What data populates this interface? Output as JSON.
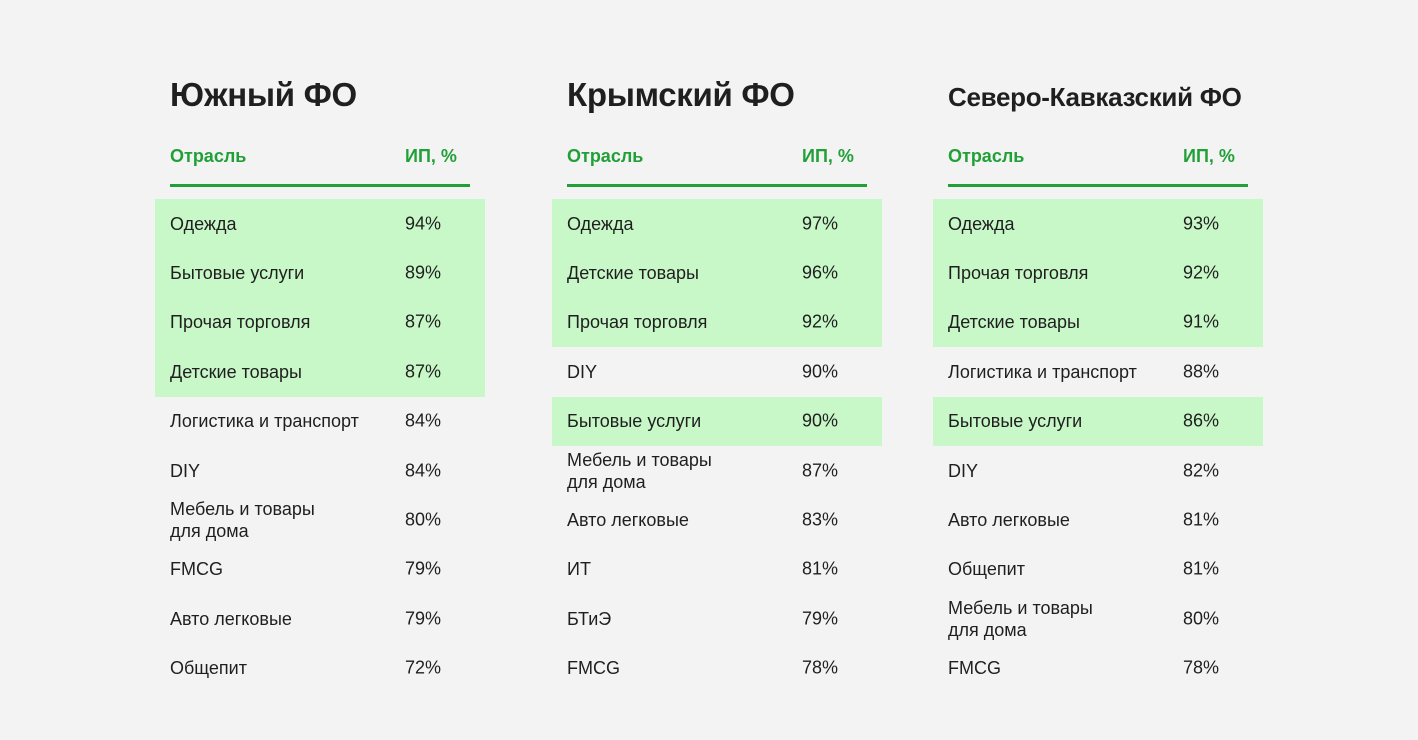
{
  "columns": {
    "industry": "Отрасль",
    "ip": "ИП, %"
  },
  "highlight_color": "#c8f7c8",
  "accent_color": "#21a038",
  "panels": [
    {
      "title": "Южный ФО",
      "rows": [
        {
          "industry": "Одежда",
          "value": "94%",
          "highlighted": true
        },
        {
          "industry": "Бытовые услуги",
          "value": "89%",
          "highlighted": true
        },
        {
          "industry": "Прочая торговля",
          "value": "87%",
          "highlighted": true
        },
        {
          "industry": "Детские товары",
          "value": "87%",
          "highlighted": true
        },
        {
          "industry": "Логистика и транспорт",
          "value": "84%",
          "highlighted": false
        },
        {
          "industry": "DIY",
          "value": "84%",
          "highlighted": false
        },
        {
          "industry": "Мебель и товары\nдля дома",
          "value": "80%",
          "highlighted": false
        },
        {
          "industry": "FMCG",
          "value": "79%",
          "highlighted": false
        },
        {
          "industry": "Авто легковые",
          "value": "79%",
          "highlighted": false
        },
        {
          "industry": "Общепит",
          "value": "72%",
          "highlighted": false
        }
      ]
    },
    {
      "title": "Крымский ФО",
      "rows": [
        {
          "industry": "Одежда",
          "value": "97%",
          "highlighted": true
        },
        {
          "industry": "Детские товары",
          "value": "96%",
          "highlighted": true
        },
        {
          "industry": "Прочая торговля",
          "value": "92%",
          "highlighted": true
        },
        {
          "industry": "DIY",
          "value": "90%",
          "highlighted": false
        },
        {
          "industry": "Бытовые услуги",
          "value": "90%",
          "highlighted": true
        },
        {
          "industry": "Мебель и товары\nдля дома",
          "value": "87%",
          "highlighted": false
        },
        {
          "industry": "Авто легковые",
          "value": "83%",
          "highlighted": false
        },
        {
          "industry": "ИТ",
          "value": "81%",
          "highlighted": false
        },
        {
          "industry": "БТиЭ",
          "value": "79%",
          "highlighted": false
        },
        {
          "industry": "FMCG",
          "value": "78%",
          "highlighted": false
        }
      ]
    },
    {
      "title": "Северо-Кавказский ФО",
      "rows": [
        {
          "industry": "Одежда",
          "value": "93%",
          "highlighted": true
        },
        {
          "industry": "Прочая торговля",
          "value": "92%",
          "highlighted": true
        },
        {
          "industry": "Детские товары",
          "value": "91%",
          "highlighted": true
        },
        {
          "industry": "Логистика и транспорт",
          "value": "88%",
          "highlighted": false
        },
        {
          "industry": "Бытовые услуги",
          "value": "86%",
          "highlighted": true
        },
        {
          "industry": "DIY",
          "value": "82%",
          "highlighted": false
        },
        {
          "industry": "Авто легковые",
          "value": "81%",
          "highlighted": false
        },
        {
          "industry": "Общепит",
          "value": "81%",
          "highlighted": false
        },
        {
          "industry": "Мебель и товары\nдля дома",
          "value": "80%",
          "highlighted": false
        },
        {
          "industry": "FMCG",
          "value": "78%",
          "highlighted": false
        }
      ]
    }
  ]
}
